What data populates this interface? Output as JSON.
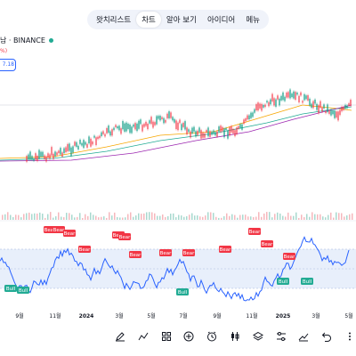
{
  "tabs": [
    {
      "label": "왓치리스트"
    },
    {
      "label": "차트"
    },
    {
      "label": "알아 보기"
    },
    {
      "label": "아이디어"
    },
    {
      "label": "메뉴"
    }
  ],
  "active_tab": "차트",
  "symbol": {
    "label": "남 · BINANCE"
  },
  "indicator_value": "%)",
  "price_tag": "7.18",
  "chart_data": {
    "type": "line",
    "x_ticks": [
      "9월",
      "11월",
      "2024",
      "3월",
      "5월",
      "7월",
      "9월",
      "11월",
      "2025",
      "3월",
      "5월"
    ],
    "rsi_labels": [
      {
        "text": "Bear",
        "kind": "bear"
      },
      {
        "text": "Bear",
        "kind": "bear"
      },
      {
        "text": "Bear",
        "kind": "bear"
      },
      {
        "text": "Bear",
        "kind": "bear"
      },
      {
        "text": "Bear",
        "kind": "bear"
      },
      {
        "text": "Bear",
        "kind": "bear"
      },
      {
        "text": "Bear",
        "kind": "bear"
      },
      {
        "text": "Bear",
        "kind": "bear"
      },
      {
        "text": "Bear",
        "kind": "bear"
      },
      {
        "text": "Bear",
        "kind": "bear"
      },
      {
        "text": "Bear",
        "kind": "bear"
      },
      {
        "text": "Bear",
        "kind": "bear"
      },
      {
        "text": "Bear",
        "kind": "bear"
      },
      {
        "text": "Bull",
        "kind": "bull"
      },
      {
        "text": "Bull",
        "kind": "bull"
      },
      {
        "text": "Bull",
        "kind": "bull"
      },
      {
        "text": "Bull",
        "kind": "bull"
      },
      {
        "text": "Bull",
        "kind": "bull"
      }
    ]
  },
  "toolbar_icons": [
    "pencil-icon",
    "indicators-icon",
    "layouts-icon",
    "add-icon",
    "alert-icon",
    "candles-icon",
    "layers-icon",
    "compare-icon",
    "trend-icon",
    "undo-icon",
    "more-icon"
  ]
}
